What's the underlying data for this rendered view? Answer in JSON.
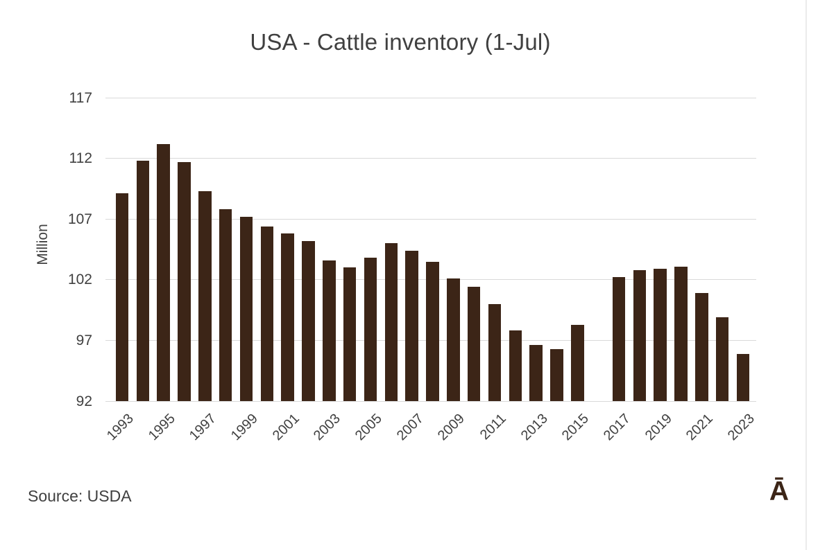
{
  "title": "USA - Cattle inventory (1-Jul)",
  "source_note": "Source: USDA",
  "brand_logo_glyph": "Ā",
  "colors": {
    "bar": "#3c2517",
    "text": "#404040",
    "gridline": "#d9d9d9",
    "logo": "#3c2517",
    "background": "#ffffff"
  },
  "chart_data": {
    "type": "bar",
    "title": "USA - Cattle inventory (1-Jul)",
    "xlabel": "",
    "ylabel": "Million",
    "ylim": [
      92,
      117
    ],
    "yticks": [
      92,
      97,
      102,
      107,
      112,
      117
    ],
    "grid": true,
    "legend": false,
    "categories": [
      "1993",
      "1994",
      "1995",
      "1996",
      "1997",
      "1998",
      "1999",
      "2000",
      "2001",
      "2002",
      "2003",
      "2004",
      "2005",
      "2006",
      "2007",
      "2008",
      "2009",
      "2010",
      "2011",
      "2012",
      "2013",
      "2014",
      "2015",
      "2016",
      "2017",
      "2018",
      "2019",
      "2020",
      "2021",
      "2022",
      "2023"
    ],
    "values": [
      109.1,
      111.8,
      113.2,
      111.7,
      109.3,
      107.8,
      107.2,
      106.4,
      105.8,
      105.2,
      103.6,
      103.0,
      103.8,
      105.0,
      104.4,
      103.5,
      102.1,
      101.4,
      100.0,
      97.8,
      96.6,
      96.3,
      98.3,
      null,
      102.2,
      102.8,
      102.9,
      103.1,
      100.9,
      98.9,
      95.9
    ],
    "x_tick_labels_shown": [
      "1993",
      "1995",
      "1997",
      "1999",
      "2001",
      "2003",
      "2005",
      "2007",
      "2009",
      "2011",
      "2013",
      "2015",
      "2017",
      "2019",
      "2021",
      "2023"
    ]
  }
}
